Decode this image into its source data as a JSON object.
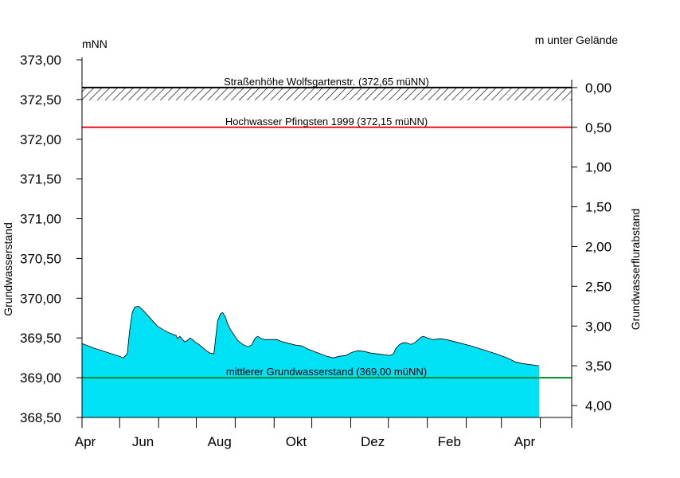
{
  "chart_data": {
    "type": "area",
    "left_unit": "mNN",
    "right_unit": "m unter Gelände",
    "ylabel_left": "Grundwasserstand",
    "ylabel_right": "Grundwasserflurabstand",
    "ylim": [
      368.5,
      373.0
    ],
    "yticks_left": [
      368.5,
      369.0,
      369.5,
      370.0,
      370.5,
      371.0,
      371.5,
      372.0,
      372.5,
      373.0
    ],
    "yticks_left_labels": [
      "368,50",
      "369,00",
      "369,50",
      "370,00",
      "370,50",
      "371,00",
      "371,50",
      "372,00",
      "372,50",
      "373,00"
    ],
    "right_ground": 372.65,
    "yticks_right": [
      0.0,
      0.5,
      1.0,
      1.5,
      2.0,
      2.5,
      3.0,
      3.5,
      4.0
    ],
    "yticks_right_labels": [
      "0,00",
      "0,50",
      "1,00",
      "1,50",
      "2,00",
      "2,50",
      "3,00",
      "3,50",
      "4,00"
    ],
    "xlim": [
      0,
      390
    ],
    "xticks": [
      0,
      30,
      61,
      91,
      122,
      153,
      183,
      214,
      244,
      275,
      306,
      334,
      365
    ],
    "xticklabels": [
      {
        "label": "Apr",
        "x": 0
      },
      {
        "label": "Jun",
        "x": 46
      },
      {
        "label": "Aug",
        "x": 107
      },
      {
        "label": "Okt",
        "x": 168
      },
      {
        "label": "Dez",
        "x": 229
      },
      {
        "label": "Feb",
        "x": 290
      },
      {
        "label": "Apr",
        "x": 350
      }
    ],
    "reference_lines": [
      {
        "name": "Straßenhöhe Wolfsgartenstr. (372,65 müNN)",
        "value": 372.65,
        "color": "#000000",
        "hatched": true
      },
      {
        "name": "Hochwasser Pfingsten 1999 (372,15 müNN)",
        "value": 372.15,
        "color": "#e8141c",
        "hatched": false
      },
      {
        "name": "mittlerer Grundwasserstand (369,00 müNN)",
        "value": 369.0,
        "color": "#00882a",
        "hatched": false
      }
    ],
    "series": [
      {
        "color": "#00e1f5",
        "x": [
          0,
          5,
          10,
          16,
          22,
          28,
          33,
          36,
          38,
          40,
          42,
          45,
          48,
          52,
          56,
          60,
          65,
          70,
          75,
          76,
          78,
          80,
          82,
          84,
          86,
          88,
          90,
          93,
          96,
          99,
          102,
          105,
          108,
          109,
          110,
          112,
          114,
          116,
          118,
          121,
          124,
          128,
          132,
          135,
          138,
          140,
          142,
          145,
          150,
          155,
          160,
          165,
          170,
          175,
          180,
          185,
          190,
          195,
          200,
          205,
          210,
          215,
          220,
          225,
          230,
          235,
          240,
          245,
          248,
          250,
          253,
          256,
          258,
          260,
          262,
          265,
          270,
          272,
          275,
          280,
          285,
          290,
          300,
          310,
          320,
          330,
          340,
          345,
          350,
          364
        ],
        "values": [
          369.43,
          369.4,
          369.37,
          369.34,
          369.31,
          369.28,
          369.25,
          369.3,
          369.6,
          369.82,
          369.89,
          369.9,
          369.86,
          369.79,
          369.72,
          369.65,
          369.6,
          369.56,
          369.53,
          369.49,
          369.52,
          369.48,
          369.45,
          369.47,
          369.5,
          369.48,
          369.45,
          369.42,
          369.38,
          369.34,
          369.31,
          369.3,
          369.72,
          369.75,
          369.8,
          369.82,
          369.77,
          369.68,
          369.61,
          369.54,
          369.47,
          369.42,
          369.39,
          369.41,
          369.5,
          369.52,
          369.5,
          369.48,
          369.48,
          369.48,
          369.45,
          369.43,
          369.41,
          369.4,
          369.36,
          369.33,
          369.3,
          369.27,
          369.25,
          369.27,
          369.28,
          369.32,
          369.34,
          369.33,
          369.31,
          369.3,
          369.29,
          369.28,
          369.3,
          369.37,
          369.42,
          369.44,
          369.44,
          369.43,
          369.42,
          369.44,
          369.51,
          369.52,
          369.5,
          369.48,
          369.49,
          369.48,
          369.44,
          369.4,
          369.35,
          369.3,
          369.24,
          369.2,
          369.18,
          369.15
        ]
      }
    ]
  }
}
